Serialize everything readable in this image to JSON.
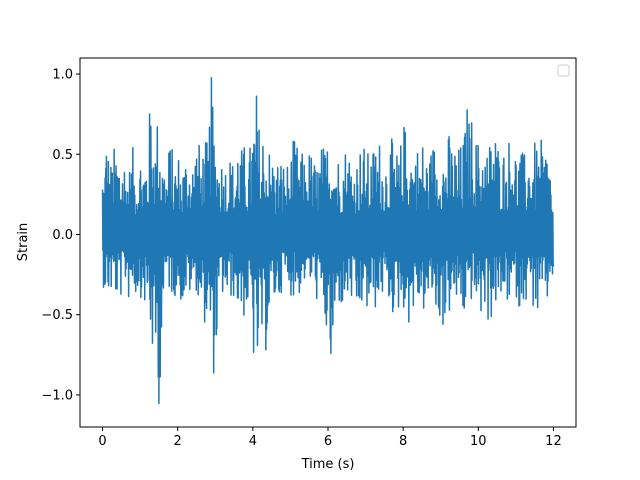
{
  "chart_data": {
    "type": "line",
    "title": "",
    "xlabel": "Time (s)",
    "ylabel": "Strain",
    "xlim": [
      -0.6,
      12.6
    ],
    "ylim": [
      -1.2,
      1.1
    ],
    "xticks": [
      0,
      2,
      4,
      6,
      8,
      10,
      12
    ],
    "xtick_labels": [
      "0",
      "2",
      "4",
      "6",
      "8",
      "10",
      "12"
    ],
    "yticks": [
      -1.0,
      -0.5,
      0.0,
      0.5,
      1.0
    ],
    "ytick_labels": [
      "−1.0",
      "−0.5",
      "0.0",
      "0.5",
      "1.0"
    ],
    "grid": false,
    "legend": {
      "location": "upper right",
      "entries": []
    },
    "series": [
      {
        "color": "#1f77b4",
        "x": [
          0.0,
          0.1,
          0.2,
          0.3,
          0.4,
          0.5,
          0.6,
          0.7,
          0.8,
          0.9,
          1.0,
          1.1,
          1.2,
          1.3,
          1.4,
          1.5,
          1.6,
          1.7,
          1.8,
          1.9,
          2.0,
          2.1,
          2.2,
          2.3,
          2.4,
          2.5,
          2.6,
          2.7,
          2.8,
          2.9,
          3.0,
          3.1,
          3.2,
          3.3,
          3.4,
          3.5,
          3.6,
          3.7,
          3.8,
          3.9,
          4.0,
          4.1,
          4.2,
          4.3,
          4.4,
          4.5,
          4.6,
          4.7,
          4.8,
          4.9,
          5.0,
          5.1,
          5.2,
          5.3,
          5.4,
          5.5,
          5.6,
          5.7,
          5.8,
          5.9,
          6.0,
          6.1,
          6.2,
          6.3,
          6.4,
          6.5,
          6.6,
          6.7,
          6.8,
          6.9,
          7.0,
          7.1,
          7.2,
          7.3,
          7.4,
          7.5,
          7.6,
          7.7,
          7.8,
          7.9,
          8.0,
          8.1,
          8.2,
          8.3,
          8.4,
          8.5,
          8.6,
          8.7,
          8.8,
          8.9,
          9.0,
          9.1,
          9.2,
          9.3,
          9.4,
          9.5,
          9.6,
          9.7,
          9.8,
          9.9,
          10.0,
          10.1,
          10.2,
          10.3,
          10.4,
          10.5,
          10.6,
          10.7,
          10.8,
          10.9,
          11.0,
          11.1,
          11.2,
          11.3,
          11.4,
          11.5,
          11.6,
          11.7,
          11.8,
          11.9,
          12.0
        ],
        "min": [
          -0.3,
          -0.42,
          -0.4,
          -0.38,
          -0.44,
          -0.4,
          -0.32,
          -0.42,
          -0.35,
          -0.4,
          -0.38,
          -0.45,
          -0.5,
          -0.75,
          -0.95,
          -1.08,
          -0.62,
          -0.3,
          -0.38,
          -0.4,
          -0.35,
          -0.45,
          -0.42,
          -0.4,
          -0.38,
          -0.35,
          -0.5,
          -0.55,
          -0.62,
          -0.87,
          -0.9,
          -0.5,
          -0.4,
          -0.45,
          -0.42,
          -0.4,
          -0.48,
          -0.55,
          -0.52,
          -0.5,
          -0.78,
          -0.98,
          -0.72,
          -0.85,
          -0.62,
          -0.5,
          -0.45,
          -0.42,
          -0.32,
          -0.35,
          -0.38,
          -0.4,
          -0.42,
          -0.33,
          -0.3,
          -0.32,
          -0.35,
          -0.42,
          -0.5,
          -0.6,
          -0.72,
          -1.01,
          -0.6,
          -0.45,
          -0.5,
          -0.45,
          -0.42,
          -0.55,
          -0.6,
          -0.48,
          -0.5,
          -0.55,
          -0.45,
          -0.5,
          -0.42,
          -0.38,
          -0.45,
          -0.5,
          -0.55,
          -0.48,
          -0.45,
          -0.62,
          -0.52,
          -0.5,
          -0.45,
          -0.48,
          -0.52,
          -0.45,
          -0.4,
          -0.6,
          -0.55,
          -0.62,
          -0.52,
          -0.5,
          -0.45,
          -0.48,
          -0.55,
          -0.5,
          -0.42,
          -0.45,
          -0.5,
          -0.55,
          -0.45,
          -0.62,
          -0.48,
          -0.45,
          -0.5,
          -0.4,
          -0.45,
          -0.48,
          -0.38,
          -0.52,
          -0.4,
          -0.45,
          -0.42,
          -0.5,
          -0.55,
          -0.45,
          -0.5,
          -0.38,
          -0.25
        ],
        "max": [
          0.3,
          0.68,
          0.45,
          0.55,
          0.58,
          0.55,
          0.52,
          0.42,
          0.55,
          0.45,
          0.55,
          0.52,
          0.58,
          0.98,
          0.62,
          0.85,
          0.52,
          0.45,
          0.62,
          0.48,
          0.55,
          0.45,
          0.52,
          0.58,
          0.5,
          0.65,
          0.55,
          0.6,
          0.58,
          1.0,
          0.65,
          0.55,
          0.5,
          0.48,
          0.52,
          0.45,
          0.65,
          0.55,
          0.58,
          0.5,
          0.78,
          0.92,
          0.6,
          0.75,
          0.58,
          0.55,
          0.45,
          0.52,
          0.48,
          0.45,
          0.5,
          0.62,
          0.55,
          0.52,
          0.48,
          0.55,
          0.5,
          0.45,
          0.58,
          0.55,
          0.62,
          0.75,
          0.58,
          0.5,
          0.55,
          0.6,
          0.55,
          0.48,
          0.52,
          0.6,
          0.55,
          0.5,
          0.55,
          0.65,
          0.6,
          0.52,
          0.55,
          0.6,
          0.55,
          0.5,
          0.72,
          0.68,
          0.6,
          0.55,
          0.58,
          0.62,
          0.55,
          0.5,
          0.6,
          0.58,
          0.62,
          0.55,
          0.65,
          0.6,
          0.58,
          0.55,
          0.62,
          0.82,
          0.78,
          0.65,
          0.6,
          0.68,
          0.55,
          0.6,
          0.82,
          0.6,
          0.58,
          0.55,
          0.6,
          0.75,
          0.55,
          0.58,
          0.5,
          0.55,
          0.6,
          0.58,
          0.55,
          0.6,
          0.58,
          0.55,
          0.12
        ]
      }
    ]
  }
}
